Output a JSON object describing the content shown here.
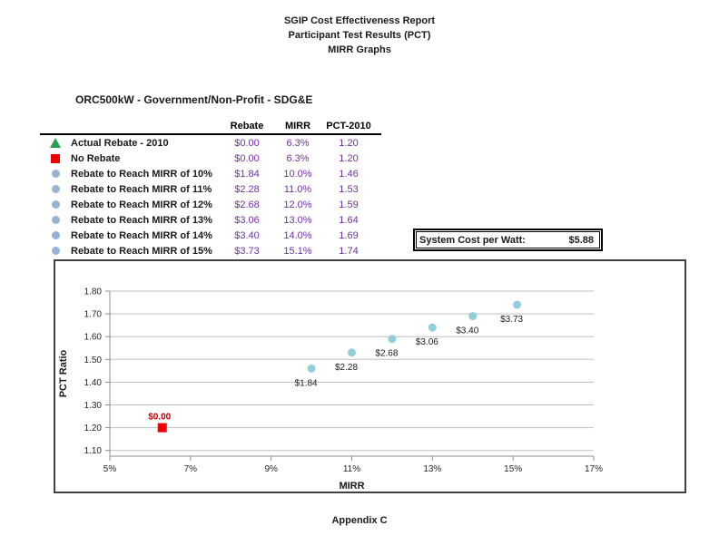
{
  "page": {
    "title_lines": [
      "SGIP Cost Effectiveness Report",
      "Participant Test Results (PCT)",
      "MIRR Graphs"
    ],
    "section_title": "ORC500kW  - Government/Non-Profit - SDG&E",
    "footer": "Appendix C"
  },
  "table": {
    "columns": [
      "Rebate",
      "MIRR",
      "PCT-2010"
    ],
    "rows": [
      {
        "marker": "triangle-green",
        "label": "Actual Rebate - 2010",
        "rebate": "$0.00",
        "mirr": "6.3%",
        "pct": "1.20"
      },
      {
        "marker": "square-red",
        "label": "No Rebate",
        "rebate": "$0.00",
        "mirr": "6.3%",
        "pct": "1.20"
      },
      {
        "marker": "circle-blue",
        "label": "Rebate to Reach MIRR of 10%",
        "rebate": "$1.84",
        "mirr": "10.0%",
        "pct": "1.46"
      },
      {
        "marker": "circle-blue",
        "label": "Rebate to Reach MIRR of 11%",
        "rebate": "$2.28",
        "mirr": "11.0%",
        "pct": "1.53"
      },
      {
        "marker": "circle-blue",
        "label": "Rebate to Reach MIRR of 12%",
        "rebate": "$2.68",
        "mirr": "12.0%",
        "pct": "1.59"
      },
      {
        "marker": "circle-blue",
        "label": "Rebate to Reach MIRR of 13%",
        "rebate": "$3.06",
        "mirr": "13.0%",
        "pct": "1.64"
      },
      {
        "marker": "circle-blue",
        "label": "Rebate to Reach MIRR of 14%",
        "rebate": "$3.40",
        "mirr": "14.0%",
        "pct": "1.69"
      },
      {
        "marker": "circle-blue",
        "label": "Rebate to Reach MIRR of 15%",
        "rebate": "$3.73",
        "mirr": "15.1%",
        "pct": "1.74"
      }
    ]
  },
  "system_cost": {
    "label": "System Cost per Watt:",
    "value": "$5.88"
  },
  "chart_data": {
    "type": "scatter",
    "title": "",
    "xlabel": "MIRR",
    "ylabel": "PCT Ratio",
    "xlim": [
      5,
      17
    ],
    "ylim": [
      1.075,
      1.8
    ],
    "x_tick_values": [
      5,
      7,
      9,
      11,
      13,
      15,
      17
    ],
    "x_tick_labels": [
      "5%",
      "7%",
      "9%",
      "11%",
      "13%",
      "15%",
      "17%"
    ],
    "y_tick_values": [
      1.1,
      1.2,
      1.3,
      1.4,
      1.5,
      1.6,
      1.7,
      1.8
    ],
    "y_tick_labels": [
      "1.10",
      "1.20",
      "1.30",
      "1.40",
      "1.50",
      "1.60",
      "1.70",
      "1.80"
    ],
    "grid": "horizontal",
    "legend_position": "none",
    "series": [
      {
        "name": "No Rebate",
        "marker": "square",
        "color": "#EE0000",
        "label_color": "#C00000",
        "points": [
          {
            "x": 6.3,
            "y": 1.2,
            "label": "$0.00",
            "label_pos": "above"
          }
        ]
      },
      {
        "name": "Rebate to Reach MIRR",
        "marker": "circle",
        "color": "#92CDDC",
        "label_color": "#1a1a1a",
        "points": [
          {
            "x": 10.0,
            "y": 1.46,
            "label": "$1.84",
            "label_pos": "below"
          },
          {
            "x": 11.0,
            "y": 1.53,
            "label": "$2.28",
            "label_pos": "below"
          },
          {
            "x": 12.0,
            "y": 1.59,
            "label": "$2.68",
            "label_pos": "below"
          },
          {
            "x": 13.0,
            "y": 1.64,
            "label": "$3.06",
            "label_pos": "below"
          },
          {
            "x": 14.0,
            "y": 1.69,
            "label": "$3.40",
            "label_pos": "below"
          },
          {
            "x": 15.1,
            "y": 1.74,
            "label": "$3.73",
            "label_pos": "below"
          }
        ]
      }
    ]
  },
  "colors": {
    "value_text": "#7030A0",
    "green_triangle": "#28A24C",
    "red_square": "#EE0000",
    "red_label": "#C00000",
    "legend_circle": "#95B3D7",
    "chart_circle": "#92CDDC",
    "gridline": "#BFBFBF",
    "axis_line": "#8C8C8C",
    "chart_border": "#404040"
  }
}
